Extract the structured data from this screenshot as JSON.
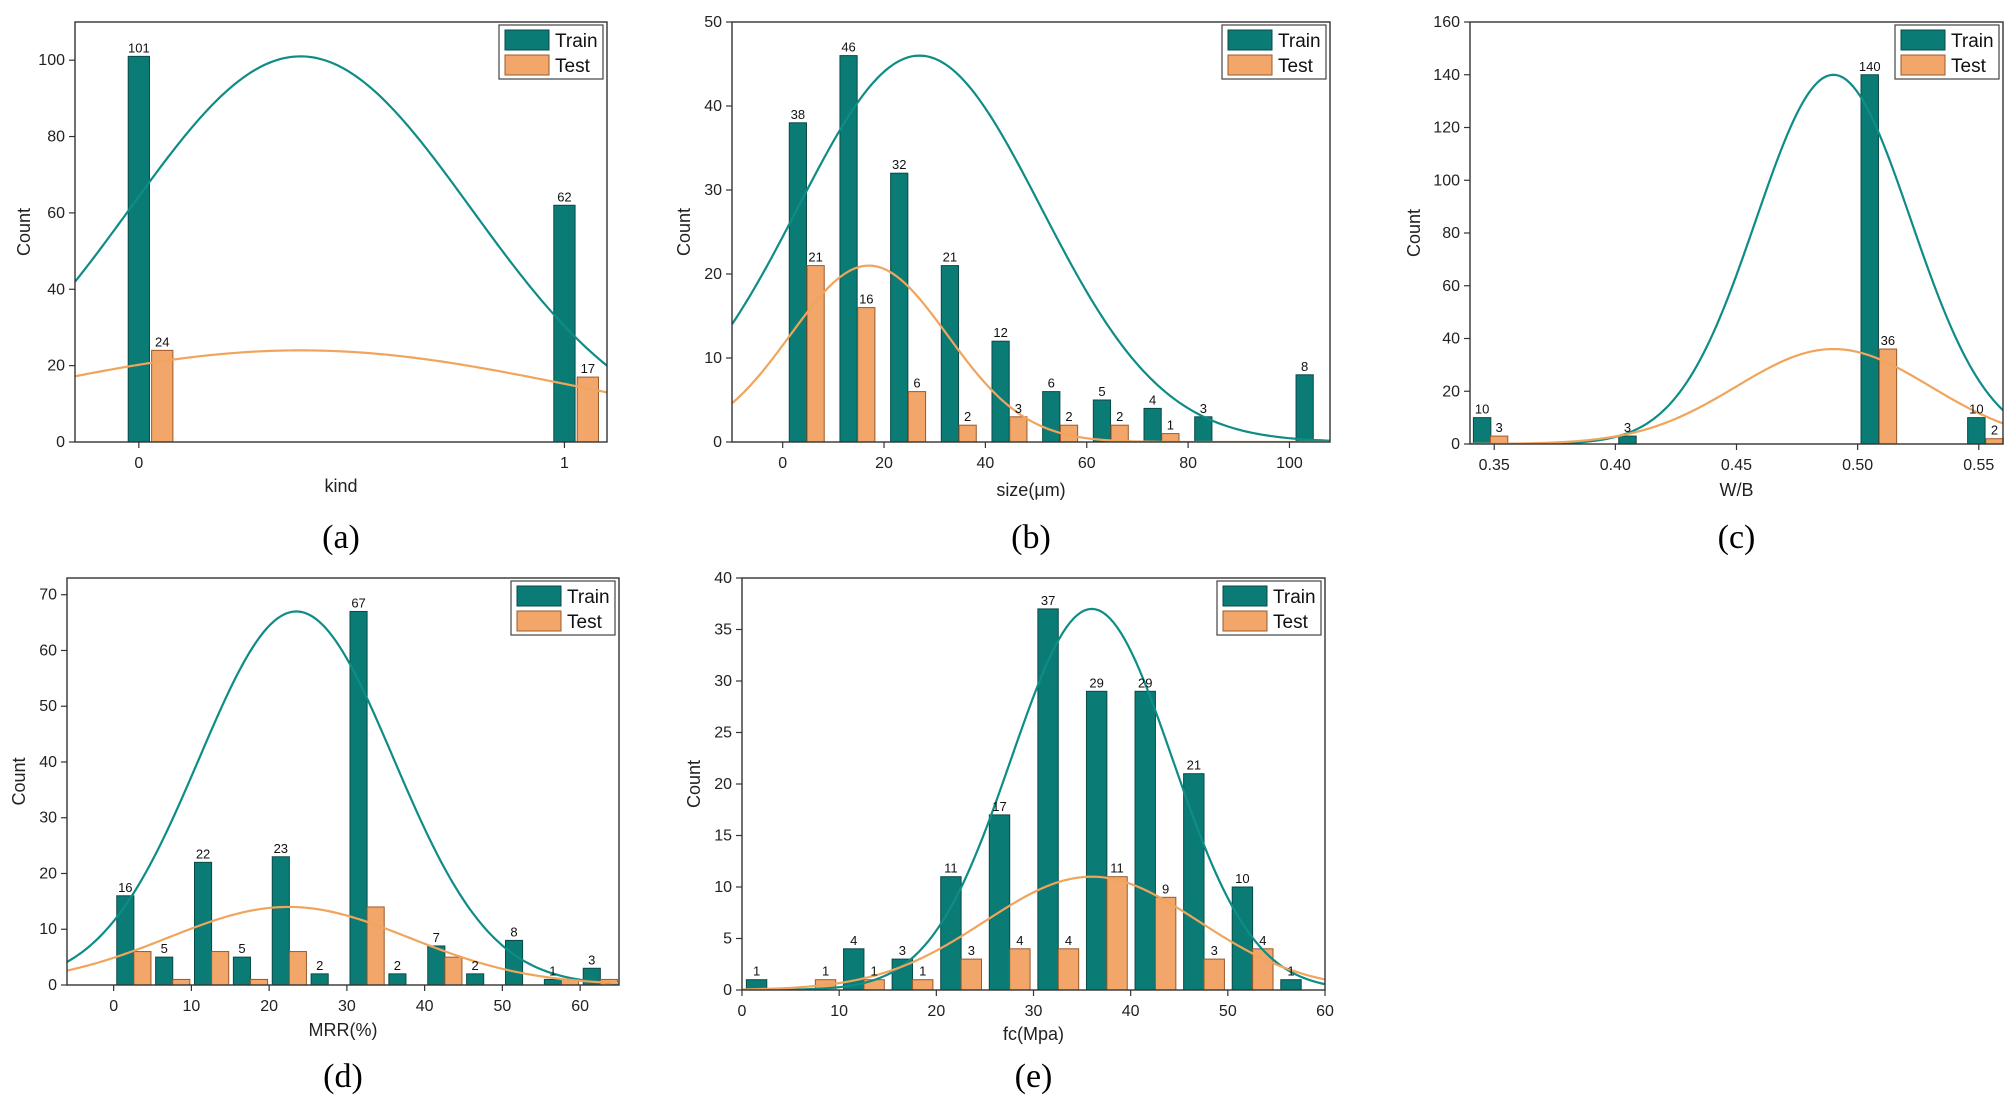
{
  "colors": {
    "train_fill": "#0b7b76",
    "train_curve": "#0e8c86",
    "test_fill": "#f2a66a",
    "test_curve": "#f0a45c",
    "axis": "#333333"
  },
  "chart_data": [
    {
      "panel": "(a)",
      "type": "bar",
      "xlabel": "kind",
      "ylabel": "Count",
      "xlim": [
        -0.15,
        1.1
      ],
      "ylim": [
        0,
        110
      ],
      "xticks": [
        0,
        1
      ],
      "xtick_labels": [
        "0",
        "1"
      ],
      "yticks": [
        0,
        20,
        40,
        60,
        80,
        100
      ],
      "bar_width": 0.05,
      "legend_position": "top-right",
      "series": [
        {
          "name": "Train",
          "x": [
            0,
            1
          ],
          "values": [
            101,
            62
          ],
          "labels": [
            "101",
            "62"
          ],
          "curve": {
            "mean": 0.38,
            "sd": 0.4,
            "peak": 101
          }
        },
        {
          "name": "Test",
          "x": [
            0.055,
            1.055
          ],
          "values": [
            24,
            17
          ],
          "labels": [
            "24",
            "17"
          ],
          "curve": {
            "mean": 0.38,
            "sd": 0.65,
            "peak": 24
          }
        }
      ]
    },
    {
      "panel": "(b)",
      "type": "bar",
      "xlabel": "size(μm)",
      "ylabel": "Count",
      "xlim": [
        -10,
        108
      ],
      "ylim": [
        0,
        50
      ],
      "xticks": [
        0,
        20,
        40,
        60,
        80,
        100
      ],
      "xtick_labels": [
        "0",
        "20",
        "40",
        "60",
        "80",
        "100"
      ],
      "yticks": [
        0,
        10,
        20,
        30,
        40,
        50
      ],
      "bar_width": 3.4,
      "legend_position": "top-right",
      "series": [
        {
          "name": "Train",
          "x": [
            3,
            13,
            23,
            33,
            43,
            53,
            63,
            73,
            83,
            103
          ],
          "values": [
            38,
            46,
            32,
            21,
            12,
            6,
            5,
            4,
            3,
            8
          ],
          "labels": [
            "38",
            "46",
            "32",
            "21",
            "12",
            "6",
            "5",
            "4",
            "3",
            "8"
          ],
          "curve": {
            "mean": 27,
            "sd": 24,
            "peak": 46
          }
        },
        {
          "name": "Test",
          "x": [
            6.5,
            16.5,
            26.5,
            36.5,
            46.5,
            56.5,
            66.5,
            76.5
          ],
          "values": [
            21,
            16,
            6,
            2,
            3,
            2,
            2,
            1
          ],
          "labels": [
            "21",
            "16",
            "6",
            "2",
            "3",
            "2",
            "2",
            "1"
          ],
          "curve": {
            "mean": 17,
            "sd": 15.5,
            "peak": 21
          }
        }
      ]
    },
    {
      "panel": "(c)",
      "type": "bar",
      "xlabel": "W/B",
      "ylabel": "Count",
      "xlim": [
        0.34,
        0.56
      ],
      "ylim": [
        0,
        160
      ],
      "xticks": [
        0.35,
        0.4,
        0.45,
        0.5,
        0.55
      ],
      "xtick_labels": [
        "0.35",
        "0.40",
        "0.45",
        "0.50",
        "0.55"
      ],
      "yticks": [
        0,
        20,
        40,
        60,
        80,
        100,
        120,
        140,
        160
      ],
      "bar_width": 0.0072,
      "legend_position": "top-right",
      "series": [
        {
          "name": "Train",
          "x": [
            0.345,
            0.405,
            0.505,
            0.549
          ],
          "values": [
            10,
            3,
            140,
            10
          ],
          "labels": [
            "10",
            "3",
            "140",
            "10"
          ],
          "curve": {
            "mean": 0.49,
            "sd": 0.032,
            "peak": 140
          }
        },
        {
          "name": "Test",
          "x": [
            0.352,
            0.5125,
            0.5565
          ],
          "values": [
            3,
            36,
            2
          ],
          "labels": [
            "3",
            "36",
            "2"
          ],
          "curve": {
            "mean": 0.49,
            "sd": 0.04,
            "peak": 36
          }
        }
      ]
    },
    {
      "panel": "(d)",
      "type": "bar",
      "xlabel": "MRR(%)",
      "ylabel": "Count",
      "xlim": [
        -6,
        65
      ],
      "ylim": [
        0,
        73
      ],
      "xticks": [
        0,
        10,
        20,
        30,
        40,
        50,
        60
      ],
      "xtick_labels": [
        "0",
        "10",
        "20",
        "30",
        "40",
        "50",
        "60"
      ],
      "yticks": [
        0,
        10,
        20,
        30,
        40,
        50,
        60,
        70
      ],
      "bar_width": 2.2,
      "legend_position": "top-right",
      "series": [
        {
          "name": "Train",
          "x": [
            1.5,
            6.5,
            11.5,
            16.5,
            21.5,
            26.5,
            31.5,
            36.5,
            41.5,
            46.5,
            51.5,
            56.5,
            61.5
          ],
          "values": [
            16,
            5,
            22,
            5,
            23,
            2,
            67,
            2,
            7,
            2,
            8,
            1,
            3
          ],
          "labels": [
            "16",
            "5",
            "22",
            "5",
            "23",
            "2",
            "67",
            "2",
            "7",
            "2",
            "8",
            "1",
            "3"
          ],
          "curve": {
            "mean": 23.5,
            "sd": 12.5,
            "peak": 67
          }
        },
        {
          "name": "Test",
          "x": [
            3.7,
            8.7,
            13.7,
            18.7,
            23.7,
            33.7,
            43.7,
            58.7,
            63.7
          ],
          "values": [
            6,
            1,
            6,
            1,
            6,
            14,
            5,
            1,
            1
          ],
          "labels": [],
          "curve": {
            "mean": 22.5,
            "sd": 15.5,
            "peak": 14
          }
        }
      ]
    },
    {
      "panel": "(e)",
      "type": "bar",
      "xlabel": "fc(Mpa)",
      "ylabel": "Count",
      "xlim": [
        0,
        60
      ],
      "ylim": [
        0,
        40
      ],
      "xticks": [
        0,
        10,
        20,
        30,
        40,
        50,
        60
      ],
      "xtick_labels": [
        "0",
        "10",
        "20",
        "30",
        "40",
        "50",
        "60"
      ],
      "yticks": [
        0,
        5,
        10,
        15,
        20,
        25,
        30,
        35,
        40
      ],
      "bar_width": 2.1,
      "legend_position": "top-right",
      "series": [
        {
          "name": "Train",
          "x": [
            1.5,
            6.5,
            11.5,
            16.5,
            21.5,
            26.5,
            31.5,
            36.5,
            41.5,
            46.5,
            51.5,
            56.5
          ],
          "values": [
            1,
            0,
            4,
            3,
            11,
            17,
            37,
            29,
            29,
            21,
            10,
            1
          ],
          "labels": [
            "1",
            "",
            "4",
            "3",
            "11",
            "17",
            "37",
            "29",
            "29",
            "21",
            "10",
            "1"
          ],
          "curve": {
            "mean": 36,
            "sd": 8.3,
            "peak": 37
          }
        },
        {
          "name": "Test",
          "x": [
            8.6,
            13.6,
            18.6,
            23.6,
            28.6,
            33.6,
            38.6,
            43.6,
            48.6,
            53.6
          ],
          "values": [
            1,
            1,
            1,
            3,
            4,
            4,
            11,
            9,
            3,
            4
          ],
          "labels": [
            "1",
            "1",
            "1",
            "3",
            "4",
            "4",
            "11",
            "9",
            "3",
            "4"
          ],
          "curve": {
            "mean": 36,
            "sd": 11,
            "peak": 11
          }
        }
      ]
    }
  ]
}
